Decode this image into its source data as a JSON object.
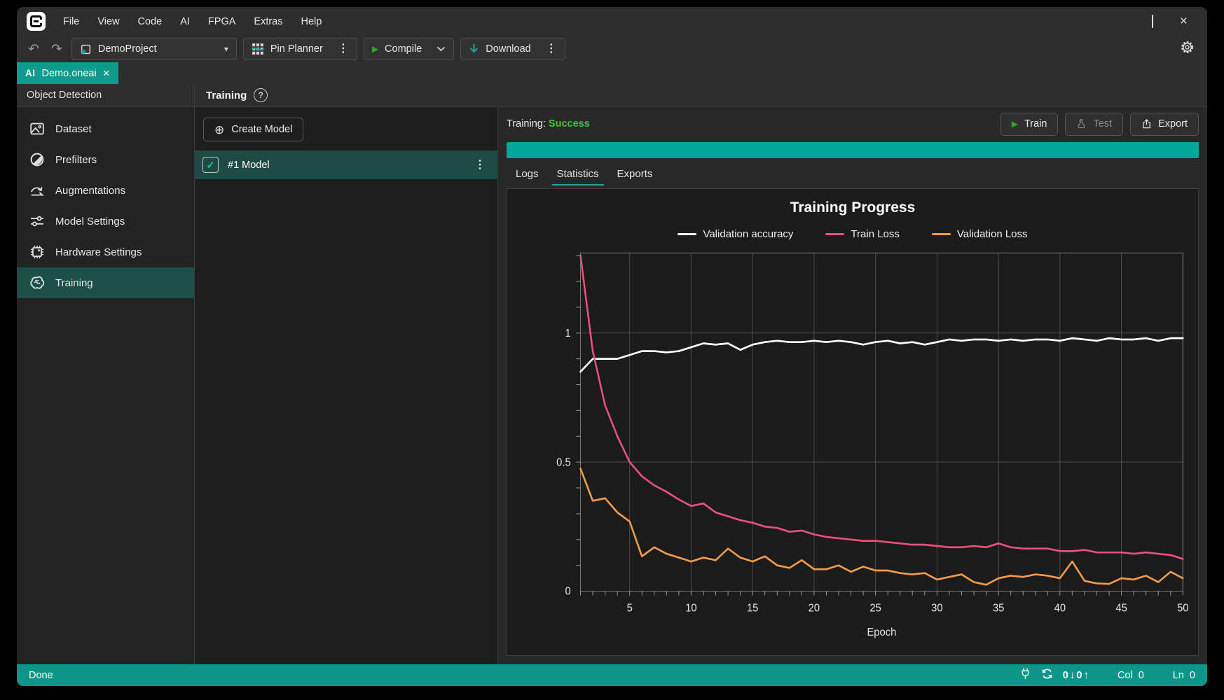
{
  "window": {
    "menu": [
      "File",
      "View",
      "Code",
      "AI",
      "FPGA",
      "Extras",
      "Help"
    ]
  },
  "toolbar": {
    "project_selector": "DemoProject",
    "pin_planner": "Pin Planner",
    "compile": "Compile",
    "download": "Download"
  },
  "tab": {
    "badge": "AI",
    "label": "Demo.oneai"
  },
  "sidebar": {
    "header": "Object Detection",
    "items": [
      {
        "label": "Dataset",
        "selected": false
      },
      {
        "label": "Prefilters",
        "selected": false
      },
      {
        "label": "Augmentations",
        "selected": false
      },
      {
        "label": "Model Settings",
        "selected": false
      },
      {
        "label": "Hardware Settings",
        "selected": false
      },
      {
        "label": "Training",
        "selected": true
      }
    ]
  },
  "models_panel": {
    "header": "Training",
    "help_glyph": "?",
    "create_button": "Create Model",
    "models": [
      {
        "name": "#1 Model",
        "checked": true
      }
    ]
  },
  "training_panel": {
    "status_label": "Training:",
    "status_value": "Success",
    "buttons": {
      "train": "Train",
      "test": "Test",
      "export": "Export"
    },
    "tabs": [
      {
        "label": "Logs",
        "active": false
      },
      {
        "label": "Statistics",
        "active": true
      },
      {
        "label": "Exports",
        "active": false
      }
    ]
  },
  "statusbar": {
    "left": "Done",
    "net_down": "0",
    "net_up": "0",
    "col_label": "Col",
    "col_value": "0",
    "ln_label": "Ln",
    "ln_value": "0"
  },
  "icons": {
    "plus_circle": "⊕",
    "kebab": "⋮",
    "check": "✓",
    "close": "×",
    "play": "▶",
    "undo": "↶",
    "redo": "↷",
    "caret_down": "▾",
    "down_arrow": "↓",
    "up_arrow": "↑"
  },
  "colors": {
    "accent_teal": "#0e9a8c",
    "progress_teal": "#00a79b",
    "success_green": "#3fc43f",
    "selected_row_teal": "#1d4a42"
  },
  "chart_data": {
    "type": "line",
    "title": "Training Progress",
    "xlabel": "Epoch",
    "ylabel": "",
    "xlim": [
      1,
      50
    ],
    "ylim": [
      0,
      1.31
    ],
    "xticks": [
      5,
      10,
      15,
      20,
      25,
      30,
      35,
      40,
      45,
      50
    ],
    "yticks": [
      0,
      0.5,
      1
    ],
    "grid": true,
    "legend_position": "top",
    "x": [
      1,
      2,
      3,
      4,
      5,
      6,
      7,
      8,
      9,
      10,
      11,
      12,
      13,
      14,
      15,
      16,
      17,
      18,
      19,
      20,
      21,
      22,
      23,
      24,
      25,
      26,
      27,
      28,
      29,
      30,
      31,
      32,
      33,
      34,
      35,
      36,
      37,
      38,
      39,
      40,
      41,
      42,
      43,
      44,
      45,
      46,
      47,
      48,
      49,
      50
    ],
    "series": [
      {
        "name": "Validation accuracy",
        "color": "#ffffff",
        "values": [
          0.85,
          0.9,
          0.9,
          0.9,
          0.915,
          0.93,
          0.93,
          0.925,
          0.93,
          0.945,
          0.96,
          0.955,
          0.96,
          0.935,
          0.955,
          0.965,
          0.97,
          0.965,
          0.965,
          0.97,
          0.965,
          0.97,
          0.965,
          0.955,
          0.965,
          0.97,
          0.96,
          0.965,
          0.955,
          0.965,
          0.975,
          0.97,
          0.975,
          0.975,
          0.97,
          0.975,
          0.97,
          0.975,
          0.975,
          0.97,
          0.98,
          0.975,
          0.97,
          0.98,
          0.975,
          0.975,
          0.98,
          0.97,
          0.98,
          0.98
        ]
      },
      {
        "name": "Train Loss",
        "color": "#e8517c",
        "values": [
          1.3,
          0.93,
          0.72,
          0.6,
          0.5,
          0.445,
          0.41,
          0.385,
          0.355,
          0.33,
          0.34,
          0.305,
          0.29,
          0.275,
          0.265,
          0.25,
          0.245,
          0.23,
          0.235,
          0.22,
          0.21,
          0.205,
          0.2,
          0.195,
          0.195,
          0.19,
          0.185,
          0.18,
          0.18,
          0.175,
          0.17,
          0.17,
          0.175,
          0.17,
          0.185,
          0.17,
          0.165,
          0.165,
          0.165,
          0.155,
          0.155,
          0.16,
          0.15,
          0.15,
          0.15,
          0.145,
          0.15,
          0.145,
          0.14,
          0.125
        ]
      },
      {
        "name": "Validation Loss",
        "color": "#f29b4d",
        "values": [
          0.475,
          0.35,
          0.36,
          0.305,
          0.27,
          0.135,
          0.17,
          0.145,
          0.13,
          0.115,
          0.13,
          0.12,
          0.165,
          0.13,
          0.115,
          0.135,
          0.1,
          0.09,
          0.12,
          0.085,
          0.085,
          0.1,
          0.075,
          0.095,
          0.08,
          0.08,
          0.07,
          0.065,
          0.07,
          0.045,
          0.055,
          0.065,
          0.035,
          0.025,
          0.05,
          0.06,
          0.055,
          0.065,
          0.06,
          0.05,
          0.115,
          0.04,
          0.03,
          0.028,
          0.05,
          0.045,
          0.06,
          0.035,
          0.075,
          0.05
        ]
      }
    ]
  }
}
